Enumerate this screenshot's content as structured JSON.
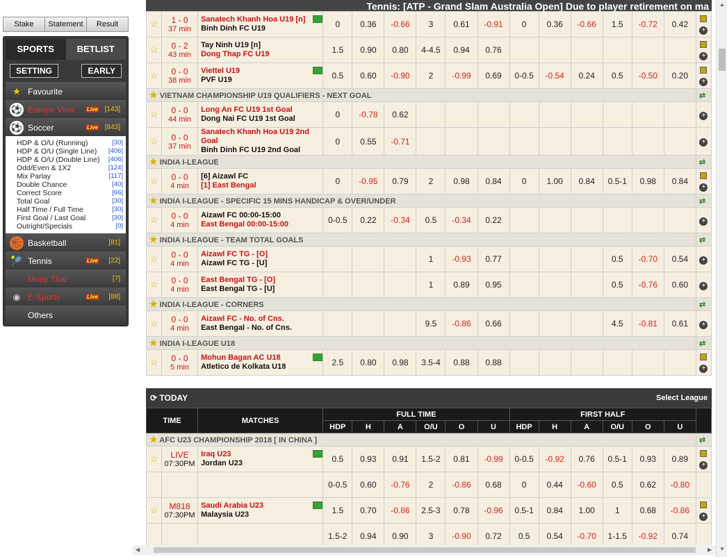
{
  "top_buttons": [
    "Stake",
    "Statement",
    "Result"
  ],
  "tabs": {
    "sports": "SPORTS",
    "betlist": "BETLIST"
  },
  "setting": "SETTING",
  "early": "EARLY",
  "sidebar": [
    {
      "label": "Favourite",
      "count": "",
      "live": false,
      "red": false,
      "icon": "star-icon"
    },
    {
      "label": "Europe View",
      "count": "[143]",
      "live": true,
      "red": true,
      "icon": "soccer-ball-icon"
    },
    {
      "label": "Soccer",
      "count": "[843]",
      "live": true,
      "red": false,
      "icon": "soccer-ball-icon"
    }
  ],
  "soccer_sub": [
    {
      "label": "HDP & O/U (Running)",
      "count": "[30]"
    },
    {
      "label": "HDP & O/U (Single Line)",
      "count": "[406]"
    },
    {
      "label": "HDP & O/U (Double Line)",
      "count": "[406]"
    },
    {
      "label": "Odd/Even & 1X2",
      "count": "[124]"
    },
    {
      "label": "Mix Parlay",
      "count": "[117]"
    },
    {
      "label": "Double Chance",
      "count": "[40]"
    },
    {
      "label": "Correct Score",
      "count": "[66]"
    },
    {
      "label": "Total Goal",
      "count": "[30]"
    },
    {
      "label": "Half Time / Full Time",
      "count": "[30]"
    },
    {
      "label": "First Goal / Last Goal",
      "count": "[30]"
    },
    {
      "label": "Outright/Specials",
      "count": "[0]"
    }
  ],
  "sidebar2": [
    {
      "label": "Basketball",
      "count": "[81]",
      "live": false,
      "red": false,
      "icon": "basketball-icon"
    },
    {
      "label": "Tennis",
      "count": "[22]",
      "live": true,
      "red": false,
      "icon": "tennis-icon"
    },
    {
      "label": "Muay Thai",
      "count": "[7]",
      "live": false,
      "red": true,
      "icon": ""
    },
    {
      "label": "E-Sports",
      "count": "[88]",
      "live": true,
      "red": true,
      "icon": "esports-icon"
    },
    {
      "label": "Others",
      "count": "",
      "live": false,
      "red": false,
      "icon": ""
    }
  ],
  "live_label": "Live",
  "marquee": "Tennis: [ATP - Grand Slam Australia Open] Due to player retirement on ma",
  "rows": [
    {
      "type": "match",
      "score": "1 - 0",
      "time": "37 min",
      "t1": "Sanatech Khanh Hoa U19 [n]",
      "t2": "Binh Dinh FC U19",
      "t1red": true,
      "t2red": false,
      "field": true,
      "odds": [
        "0",
        "0.36",
        "-0.66",
        "3",
        "0.61",
        "-0.91",
        "0",
        "0.36",
        "-0.66",
        "1.5",
        "-0.72",
        "0.42"
      ],
      "chart": true
    },
    {
      "type": "match",
      "score": "0 - 2",
      "time": "43 min",
      "t1": "Tay Ninh U19 [n]",
      "t2": "Dong Thap FC U19",
      "t1red": false,
      "t2red": true,
      "field": false,
      "odds": [
        "1.5",
        "0.90",
        "0.80",
        "4-4.5",
        "0.94",
        "0.76",
        "",
        "",
        "",
        "",
        "",
        ""
      ],
      "chart": true
    },
    {
      "type": "match",
      "score": "0 - 0",
      "time": "38 min",
      "t1": "Viettel U19",
      "t2": "PVF U19",
      "t1red": true,
      "t2red": false,
      "field": true,
      "odds": [
        "0.5",
        "0.60",
        "-0.90",
        "2",
        "-0.99",
        "0.69",
        "0-0.5",
        "-0.54",
        "0.24",
        "0.5",
        "-0.50",
        "0.20"
      ],
      "chart": true
    },
    {
      "type": "league",
      "name": "VIETNAM CHAMPIONSHIP U19 QUALIFIERS - NEXT GOAL"
    },
    {
      "type": "match",
      "score": "0 - 0",
      "time": "44 min",
      "t1": "Long An FC U19 1st Goal",
      "t2": "Dong Nai FC U19 1st Goal",
      "t1red": true,
      "t2red": false,
      "field": false,
      "odds": [
        "0",
        "-0.78",
        "0.62",
        "",
        "",
        "",
        "",
        "",
        "",
        "",
        "",
        ""
      ],
      "chart": false
    },
    {
      "type": "match",
      "score": "0 - 0",
      "time": "37 min",
      "t1": "Sanatech Khanh Hoa U19 2nd Goal",
      "t2": "Binh Dinh FC U19 2nd Goal",
      "t1red": true,
      "t2red": false,
      "field": false,
      "odds": [
        "0",
        "0.55",
        "-0.71",
        "",
        "",
        "",
        "",
        "",
        "",
        "",
        "",
        ""
      ],
      "chart": false
    },
    {
      "type": "league",
      "name": "INDIA I-LEAGUE"
    },
    {
      "type": "match",
      "score": "0 - 0",
      "time": "4 min",
      "t1": "[6] Aizawl FC",
      "t2": "[1] East Bengal",
      "t1red": false,
      "t2red": true,
      "field": false,
      "odds": [
        "0",
        "-0.95",
        "0.79",
        "2",
        "0.98",
        "0.84",
        "0",
        "1.00",
        "0.84",
        "0.5-1",
        "0.98",
        "0.84"
      ],
      "chart": true
    },
    {
      "type": "league",
      "name": "INDIA I-LEAGUE - SPECIFIC 15 MINS HANDICAP & OVER/UNDER"
    },
    {
      "type": "match",
      "score": "0 - 0",
      "time": "4 min",
      "t1": "Aizawl FC 00:00-15:00",
      "t2": "East Bengal 00:00-15:00",
      "t1red": false,
      "t2red": true,
      "field": false,
      "odds": [
        "0-0.5",
        "0.22",
        "-0.34",
        "0.5",
        "-0.34",
        "0.22",
        "",
        "",
        "",
        "",
        "",
        ""
      ],
      "chart": false
    },
    {
      "type": "league",
      "name": "INDIA I-LEAGUE - TEAM TOTAL GOALS"
    },
    {
      "type": "match",
      "score": "0 - 0",
      "time": "4 min",
      "t1": "Aizawl FC TG - [O]",
      "t2": "Aizawl FC TG - [U]",
      "t1red": true,
      "t2red": false,
      "field": false,
      "odds": [
        "",
        "",
        "",
        "1",
        "-0.93",
        "0.77",
        "",
        "",
        "",
        "0.5",
        "-0.70",
        "0.54"
      ],
      "chart": false
    },
    {
      "type": "match",
      "score": "0 - 0",
      "time": "4 min",
      "t1": "East Bengal TG - [O]",
      "t2": "East Bengal TG - [U]",
      "t1red": true,
      "t2red": false,
      "field": false,
      "odds": [
        "",
        "",
        "",
        "1",
        "0.89",
        "0.95",
        "",
        "",
        "",
        "0.5",
        "-0.76",
        "0.60"
      ],
      "chart": false
    },
    {
      "type": "league",
      "name": "INDIA I-LEAGUE - CORNERS"
    },
    {
      "type": "match",
      "score": "0 - 0",
      "time": "4 min",
      "t1": "Aizawl FC - No. of Cns.",
      "t2": "East Bengal - No. of Cns.",
      "t1red": true,
      "t2red": false,
      "field": false,
      "odds": [
        "",
        "",
        "",
        "9.5",
        "-0.86",
        "0.66",
        "",
        "",
        "",
        "4.5",
        "-0.81",
        "0.61"
      ],
      "chart": false
    },
    {
      "type": "league",
      "name": "INDIA I-LEAGUE U18"
    },
    {
      "type": "match",
      "score": "0 - 0",
      "time": "5 min",
      "t1": "Mohun Bagan AC U18",
      "t2": "Atletico de Kolkata U18",
      "t1red": true,
      "t2red": false,
      "field": true,
      "odds": [
        "2.5",
        "0.80",
        "0.98",
        "3.5-4",
        "0.88",
        "0.88",
        "",
        "",
        "",
        "",
        "",
        ""
      ],
      "chart": true
    }
  ],
  "today": {
    "title": "TODAY",
    "select": "Select League"
  },
  "headers": {
    "time": "TIME",
    "matches": "MATCHES",
    "full": "FULL TIME",
    "first": "FIRST HALF",
    "cols": [
      "HDP",
      "H",
      "A",
      "O/U",
      "O",
      "U",
      "HDP",
      "H",
      "A",
      "O/U",
      "O",
      "U"
    ]
  },
  "today_rows": [
    {
      "type": "league",
      "name": "AFC U23 CHAMPIONSHIP 2018 [ IN CHINA ]"
    },
    {
      "type": "match",
      "score": "LIVE",
      "time": "07:30PM",
      "t1": "Iraq U23",
      "t2": "Jordan U23",
      "t1red": true,
      "t2red": false,
      "field": true,
      "odds": [
        "0.5",
        "0.93",
        "0.91",
        "1.5-2",
        "0.81",
        "-0.99",
        "0-0.5",
        "-0.92",
        "0.76",
        "0.5-1",
        "0.93",
        "0.89"
      ],
      "chart": true
    },
    {
      "type": "extra",
      "odds": [
        "0-0.5",
        "0.60",
        "-0.76",
        "2",
        "-0.86",
        "0.68",
        "0",
        "0.44",
        "-0.60",
        "0.5",
        "0.62",
        "-0.80"
      ]
    },
    {
      "type": "match",
      "score": "M818",
      "time": "07:30PM",
      "t1": "Saudi Arabia U23",
      "t2": "Malaysia U23",
      "t1red": true,
      "t2red": false,
      "field": true,
      "odds": [
        "1.5",
        "0.70",
        "-0.86",
        "2.5-3",
        "0.78",
        "-0.96",
        "0.5-1",
        "0.84",
        "1.00",
        "1",
        "0.68",
        "-0.86"
      ],
      "chart": true
    },
    {
      "type": "extra",
      "odds": [
        "1.5-2",
        "0.94",
        "0.90",
        "3",
        "-0.90",
        "0.72",
        "0.5",
        "0.54",
        "-0.70",
        "1-1.5",
        "-0.92",
        "0.74"
      ]
    }
  ]
}
